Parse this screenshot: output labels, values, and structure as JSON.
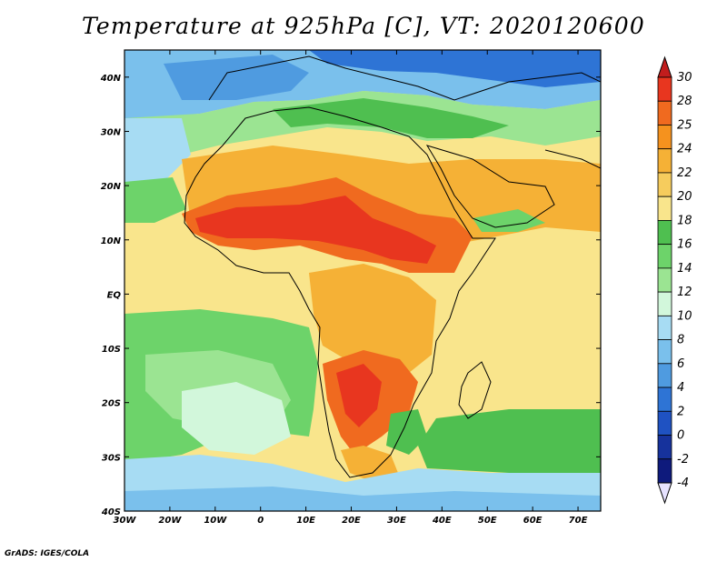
{
  "title": "Temperature at 925hPa [C], VT: 2020120600",
  "credit": "GrADS: IGES/COLA",
  "map": {
    "lon_labels": [
      "30W",
      "20W",
      "10W",
      "0",
      "10E",
      "20E",
      "30E",
      "40E",
      "50E",
      "60E",
      "70E"
    ],
    "lat_labels": [
      "40N",
      "30N",
      "20N",
      "10N",
      "EQ",
      "10S",
      "20S",
      "30S",
      "40S"
    ],
    "lon_range": [
      -30,
      75
    ],
    "lat_range": [
      -40,
      45
    ]
  },
  "colorbar": {
    "labels": [
      "30",
      "28",
      "25",
      "24",
      "22",
      "20",
      "18",
      "16",
      "14",
      "12",
      "10",
      "8",
      "6",
      "4",
      "2",
      "0",
      "-2",
      "-4"
    ],
    "colors": [
      "#e8361f",
      "#f06a1f",
      "#f5921e",
      "#f5b136",
      "#f6cc5d",
      "#f9e58c",
      "#4fbf50",
      "#6dd36a",
      "#9be492",
      "#d2f7db",
      "#a7dcf3",
      "#7ac0ec",
      "#4f9be0",
      "#2e74d5",
      "#1f52c2",
      "#16329c",
      "#0e1a7c"
    ],
    "over_color": "#c11d1d",
    "under_color": "#e6e2ff"
  },
  "palette": {
    "hot": "#e8361f",
    "warm": "#f5b136",
    "mild": "#f9e58c",
    "green": "#4fbf50",
    "lightgreen": "#9be492",
    "pale": "#d2f7db",
    "lightblue": "#a7dcf3",
    "blue": "#4f9be0",
    "deepblue": "#1f52c2"
  }
}
